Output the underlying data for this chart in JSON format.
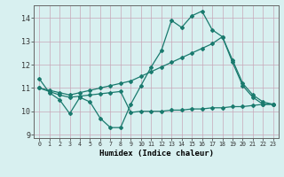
{
  "line1_x": [
    0,
    1,
    2,
    3,
    4,
    5,
    6,
    7,
    8,
    9,
    10,
    11,
    12,
    13,
    14,
    15,
    16,
    17,
    18,
    19,
    20,
    21,
    22,
    23
  ],
  "line1_y": [
    11.4,
    10.8,
    10.5,
    9.9,
    10.6,
    10.4,
    9.7,
    9.3,
    9.3,
    10.3,
    11.1,
    11.9,
    12.6,
    13.9,
    13.6,
    14.1,
    14.3,
    13.5,
    13.2,
    12.1,
    11.1,
    10.6,
    10.3,
    10.3
  ],
  "line2_x": [
    0,
    1,
    2,
    3,
    4,
    5,
    6,
    7,
    8,
    9,
    10,
    11,
    12,
    13,
    14,
    15,
    16,
    17,
    18,
    19,
    20,
    21,
    22,
    23
  ],
  "line2_y": [
    11.0,
    10.9,
    10.8,
    10.7,
    10.8,
    10.9,
    11.0,
    11.1,
    11.2,
    11.3,
    11.5,
    11.7,
    11.9,
    12.1,
    12.3,
    12.5,
    12.7,
    12.9,
    13.2,
    12.2,
    11.2,
    10.7,
    10.4,
    10.3
  ],
  "line3_x": [
    0,
    1,
    2,
    3,
    4,
    5,
    6,
    7,
    8,
    9,
    10,
    11,
    12,
    13,
    14,
    15,
    16,
    17,
    18,
    19,
    20,
    21,
    22,
    23
  ],
  "line3_y": [
    11.0,
    10.85,
    10.7,
    10.6,
    10.65,
    10.7,
    10.75,
    10.8,
    10.85,
    9.95,
    10.0,
    10.0,
    10.0,
    10.05,
    10.05,
    10.1,
    10.1,
    10.15,
    10.15,
    10.2,
    10.2,
    10.25,
    10.3,
    10.3
  ],
  "color": "#1a7a6e",
  "bg_color": "#d8f0f0",
  "grid_color": "#c8a8b8",
  "xlabel": "Humidex (Indice chaleur)",
  "ylim": [
    8.85,
    14.55
  ],
  "xlim": [
    -0.5,
    23.5
  ],
  "yticks": [
    9,
    10,
    11,
    12,
    13,
    14
  ],
  "xticks": [
    0,
    1,
    2,
    3,
    4,
    5,
    6,
    7,
    8,
    9,
    10,
    11,
    12,
    13,
    14,
    15,
    16,
    17,
    18,
    19,
    20,
    21,
    22,
    23
  ]
}
